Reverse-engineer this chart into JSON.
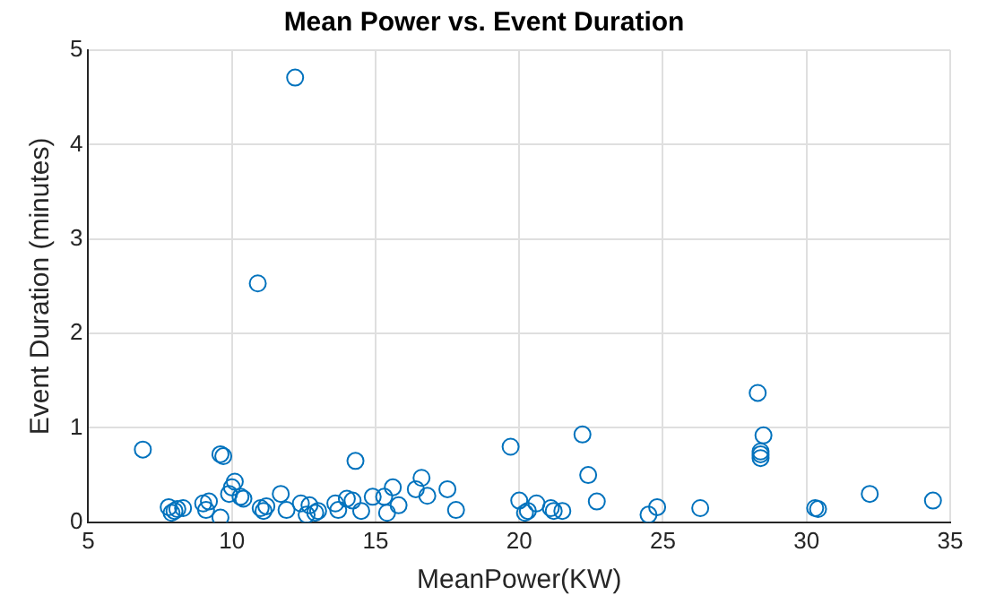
{
  "chart_data": {
    "type": "scatter",
    "title": "Mean Power vs. Event Duration",
    "xlabel": "MeanPower(KW)",
    "ylabel": "Event Duration (minutes)",
    "x": [
      6.9,
      7.8,
      7.9,
      8.0,
      8.1,
      8.3,
      9.0,
      9.2,
      9.1,
      9.6,
      9.7,
      9.6,
      9.9,
      10.0,
      10.1,
      10.3,
      10.4,
      10.9,
      11.0,
      11.1,
      11.2,
      11.7,
      11.9,
      12.2,
      12.4,
      12.6,
      12.7,
      12.9,
      13.0,
      13.6,
      13.7,
      14.0,
      14.2,
      14.3,
      14.5,
      14.9,
      15.3,
      15.4,
      15.6,
      15.8,
      16.4,
      16.6,
      16.8,
      17.5,
      17.8,
      19.7,
      20.0,
      20.2,
      20.3,
      20.6,
      21.1,
      21.2,
      21.5,
      22.2,
      22.4,
      22.7,
      24.5,
      24.8,
      26.3,
      28.3,
      28.5,
      28.4,
      28.4,
      28.4,
      30.3,
      30.4,
      32.2,
      34.4
    ],
    "series": [
      {
        "color": "#0072bd",
        "values": [
          0.77,
          0.16,
          0.1,
          0.12,
          0.14,
          0.15,
          0.2,
          0.22,
          0.13,
          0.72,
          0.7,
          0.05,
          0.3,
          0.37,
          0.43,
          0.27,
          0.25,
          2.53,
          0.15,
          0.12,
          0.17,
          0.3,
          0.13,
          4.71,
          0.2,
          0.08,
          0.18,
          0.1,
          0.12,
          0.2,
          0.13,
          0.25,
          0.23,
          0.65,
          0.12,
          0.27,
          0.27,
          0.1,
          0.37,
          0.18,
          0.35,
          0.47,
          0.28,
          0.35,
          0.13,
          0.8,
          0.23,
          0.1,
          0.12,
          0.2,
          0.15,
          0.12,
          0.12,
          0.93,
          0.5,
          0.22,
          0.08,
          0.16,
          0.15,
          1.37,
          0.92,
          0.75,
          0.72,
          0.68,
          0.15,
          0.14,
          0.3,
          0.23
        ]
      }
    ],
    "xlim": [
      5,
      35
    ],
    "xticks": [
      5,
      10,
      15,
      20,
      25,
      30,
      35
    ],
    "ylim": [
      0,
      5
    ],
    "yticks": [
      0,
      1,
      2,
      3,
      4,
      5
    ],
    "grid": true,
    "marker": "circle",
    "legend": false
  }
}
